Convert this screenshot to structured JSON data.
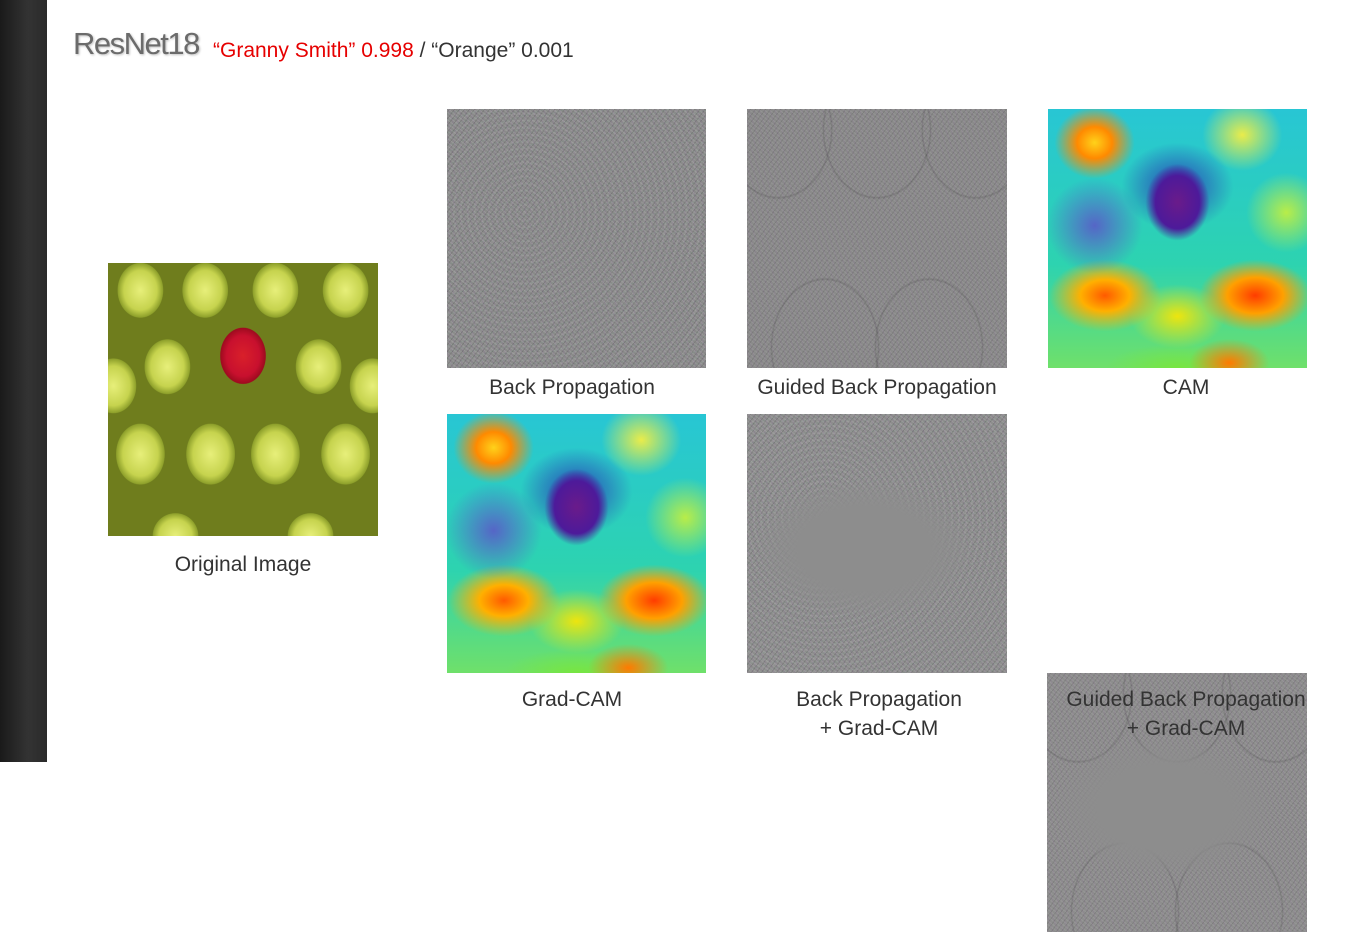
{
  "title": "ResNet18",
  "prediction": {
    "top_label": "“Granny Smith” 0.998",
    "separator": " / ",
    "second_label": "“Orange” 0.001",
    "top_color": "#e60000"
  },
  "panels": {
    "original": {
      "caption": "Original Image"
    },
    "back_propagation": {
      "caption": "Back Propagation"
    },
    "guided_back_propagation": {
      "caption": "Guided Back Propagation"
    },
    "cam": {
      "caption": "CAM"
    },
    "grad_cam": {
      "caption": "Grad-CAM"
    },
    "back_propagation_grad_cam": {
      "caption_line1": "Back Propagation",
      "caption_line2": "+ Grad-CAM"
    },
    "guided_back_propagation_grad_cam": {
      "caption_line1": "Guided Back Propagation",
      "caption_line2": "+ Grad-CAM"
    }
  }
}
